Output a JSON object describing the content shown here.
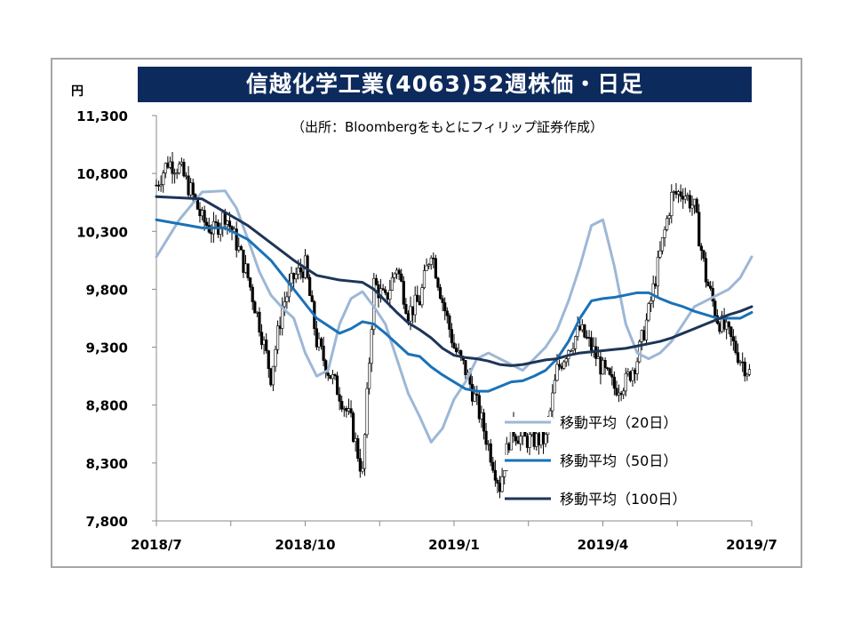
{
  "title": "信越化学工業(4063)52週株価・日足",
  "unit": "円",
  "source": "（出所：Bloombergをもとにフィリップ証券作成）",
  "colors": {
    "candle": "#000000",
    "ma20": "#9db7d6",
    "ma50": "#1a72b8",
    "ma100": "#1d3557",
    "title_bg": "#0d2a5c"
  },
  "chart_data": {
    "type": "line",
    "title": "信越化学工業(4063)52週株価・日足",
    "ylabel": "円",
    "ylim": [
      7800,
      11300
    ],
    "yticks": [
      "11,300",
      "10,800",
      "10,300",
      "9,800",
      "9,300",
      "8,800",
      "8,300",
      "7,800"
    ],
    "xticks": [
      "2018/7",
      "2018/10",
      "2019/1",
      "2019/4",
      "2019/7"
    ],
    "x_index_range": [
      0,
      52
    ],
    "tick_positions": [
      0,
      13,
      26,
      39,
      52
    ],
    "grid": false,
    "legend_position": "bottom-right",
    "price_weekly_approx": {
      "name": "株価(日足)",
      "x": [
        0,
        1,
        2,
        3,
        4,
        5,
        6,
        7,
        8,
        9,
        10,
        11,
        12,
        13,
        14,
        15,
        16,
        17,
        18,
        19,
        20,
        21,
        22,
        23,
        24,
        25,
        26,
        27,
        28,
        29,
        30,
        31,
        32,
        33,
        34,
        35,
        36,
        37,
        38,
        39,
        40,
        41,
        42,
        43,
        44,
        45,
        46,
        47,
        48,
        49,
        50,
        51,
        52
      ],
      "values": [
        10700,
        10900,
        10850,
        10650,
        10400,
        10300,
        10450,
        10200,
        9900,
        9500,
        9050,
        9650,
        9900,
        10000,
        9350,
        9100,
        8900,
        8650,
        8200,
        9850,
        9700,
        10000,
        9600,
        9700,
        10150,
        9700,
        9300,
        9100,
        8800,
        8450,
        8100,
        8600,
        8500,
        8500,
        8500,
        9100,
        9300,
        9450,
        9300,
        9100,
        8950,
        9000,
        9200,
        9600,
        10100,
        10600,
        10650,
        10500,
        9900,
        9550,
        9400,
        9200,
        9050
      ]
    },
    "series": [
      {
        "name": "移動平均（20日）",
        "x": [
          0,
          2,
          4,
          6,
          7,
          8,
          9,
          10,
          11,
          12,
          13,
          14,
          15,
          16,
          17,
          18,
          19,
          20,
          21,
          22,
          23,
          24,
          25,
          26,
          27,
          28,
          29,
          30,
          31,
          32,
          33,
          34,
          35,
          36,
          37,
          38,
          39,
          40,
          41,
          42,
          43,
          44,
          45,
          46,
          47,
          48,
          49,
          50,
          51,
          52
        ],
        "values": [
          10080,
          10400,
          10640,
          10650,
          10500,
          10230,
          9950,
          9750,
          9640,
          9550,
          9250,
          9050,
          9100,
          9500,
          9720,
          9780,
          9650,
          9500,
          9200,
          8900,
          8700,
          8480,
          8600,
          8850,
          9000,
          9200,
          9250,
          9200,
          9150,
          9100,
          9200,
          9300,
          9450,
          9700,
          10000,
          10350,
          10400,
          10000,
          9500,
          9250,
          9200,
          9250,
          9350,
          9500,
          9650,
          9700,
          9750,
          9800,
          9900,
          10080
        ]
      },
      {
        "name": "移動平均（50日）",
        "x": [
          0,
          4,
          6,
          8,
          10,
          12,
          14,
          16,
          17,
          18,
          19,
          20,
          21,
          22,
          23,
          24,
          25,
          26,
          27,
          28,
          29,
          30,
          31,
          32,
          33,
          34,
          35,
          36,
          37,
          38,
          39,
          40,
          41,
          42,
          43,
          44,
          45,
          46,
          47,
          48,
          49,
          50,
          51,
          52
        ],
        "values": [
          10400,
          10330,
          10330,
          10230,
          10050,
          9800,
          9550,
          9420,
          9460,
          9520,
          9500,
          9420,
          9330,
          9240,
          9220,
          9130,
          9060,
          9000,
          8940,
          8920,
          8920,
          8960,
          9000,
          9010,
          9050,
          9100,
          9200,
          9350,
          9550,
          9700,
          9720,
          9730,
          9750,
          9770,
          9770,
          9720,
          9680,
          9650,
          9610,
          9580,
          9550,
          9550,
          9550,
          9600
        ]
      },
      {
        "name": "移動平均（100日）",
        "x": [
          0,
          4,
          8,
          12,
          14,
          16,
          17,
          18,
          19,
          20,
          21,
          22,
          23,
          24,
          25,
          26,
          27,
          28,
          29,
          30,
          31,
          32,
          33,
          34,
          35,
          36,
          37,
          38,
          39,
          40,
          41,
          42,
          43,
          44,
          45,
          46,
          47,
          48,
          49,
          50,
          51,
          52
        ],
        "values": [
          10600,
          10580,
          10350,
          10050,
          9920,
          9880,
          9870,
          9860,
          9800,
          9700,
          9600,
          9510,
          9450,
          9380,
          9290,
          9230,
          9210,
          9200,
          9180,
          9150,
          9140,
          9150,
          9170,
          9190,
          9200,
          9230,
          9250,
          9260,
          9270,
          9280,
          9290,
          9310,
          9330,
          9350,
          9380,
          9420,
          9460,
          9500,
          9540,
          9580,
          9610,
          9650
        ]
      }
    ]
  }
}
